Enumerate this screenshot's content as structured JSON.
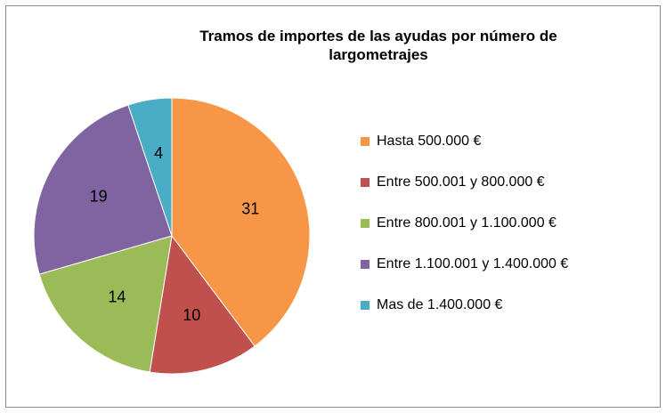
{
  "chart_data": {
    "type": "pie",
    "title": "Tramos de importes de las ayudas por número de largometrajes",
    "categories": [
      "Hasta 500.000 €",
      "Entre 500.001 y 800.000 €",
      "Entre 800.001 y 1.100.000 €",
      "Entre 1.100.001 y 1.400.000 €",
      "Mas de 1.400.000 €"
    ],
    "values": [
      31,
      10,
      14,
      19,
      4
    ],
    "colors": [
      "#f79646",
      "#c0504d",
      "#9bbb59",
      "#8064a2",
      "#4bacc6"
    ],
    "legend": "right"
  }
}
